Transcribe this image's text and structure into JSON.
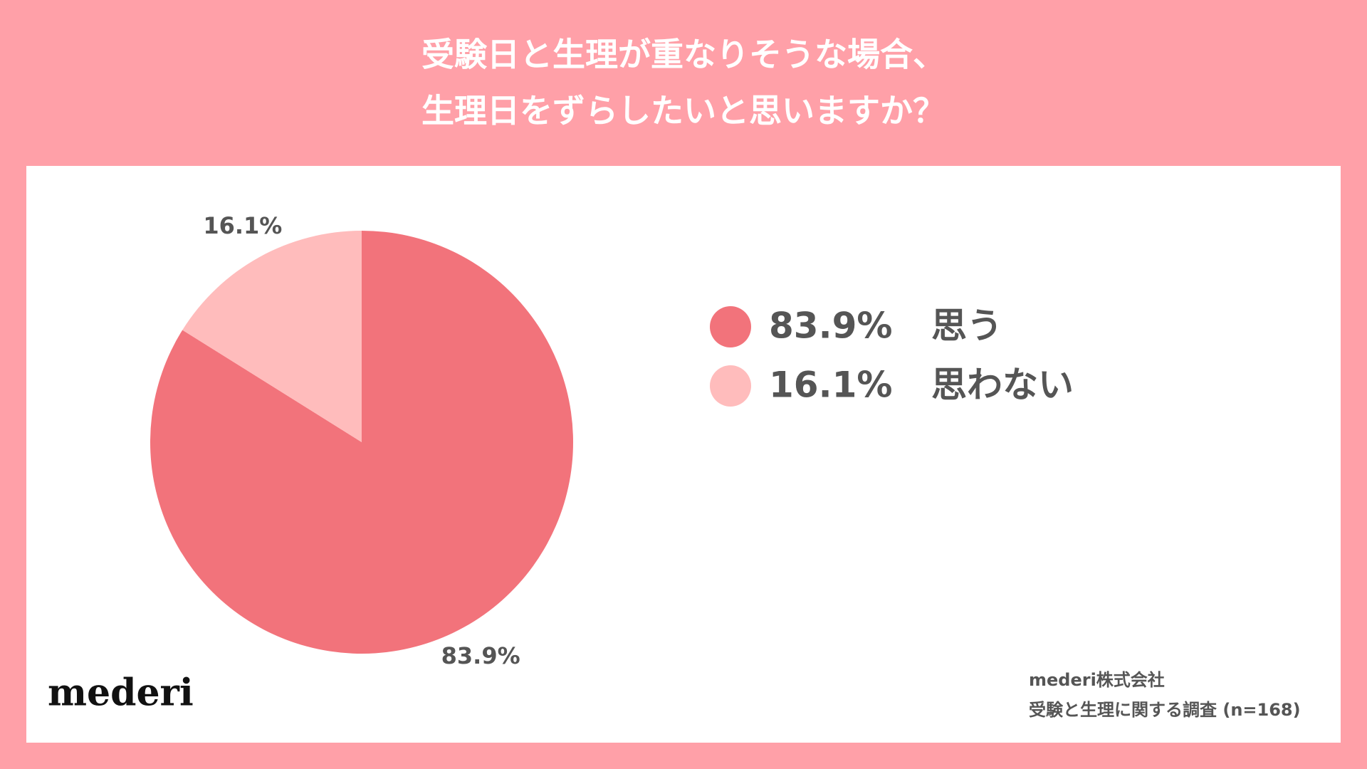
{
  "chart_data": {
    "type": "pie",
    "title": [
      "受験日と生理が重なりそうな場合、",
      "生理日をずらしたいと思いますか？"
    ],
    "categories": [
      "思う",
      "思わない"
    ],
    "values": [
      83.9,
      16.1
    ],
    "value_labels": [
      "83.9%",
      "16.1%"
    ],
    "colors": [
      "#f2737b",
      "#ffbcbc"
    ],
    "logo": "mederi",
    "source": [
      "mederi株式会社",
      "受験と生理に関する調査 (n=168)"
    ]
  }
}
